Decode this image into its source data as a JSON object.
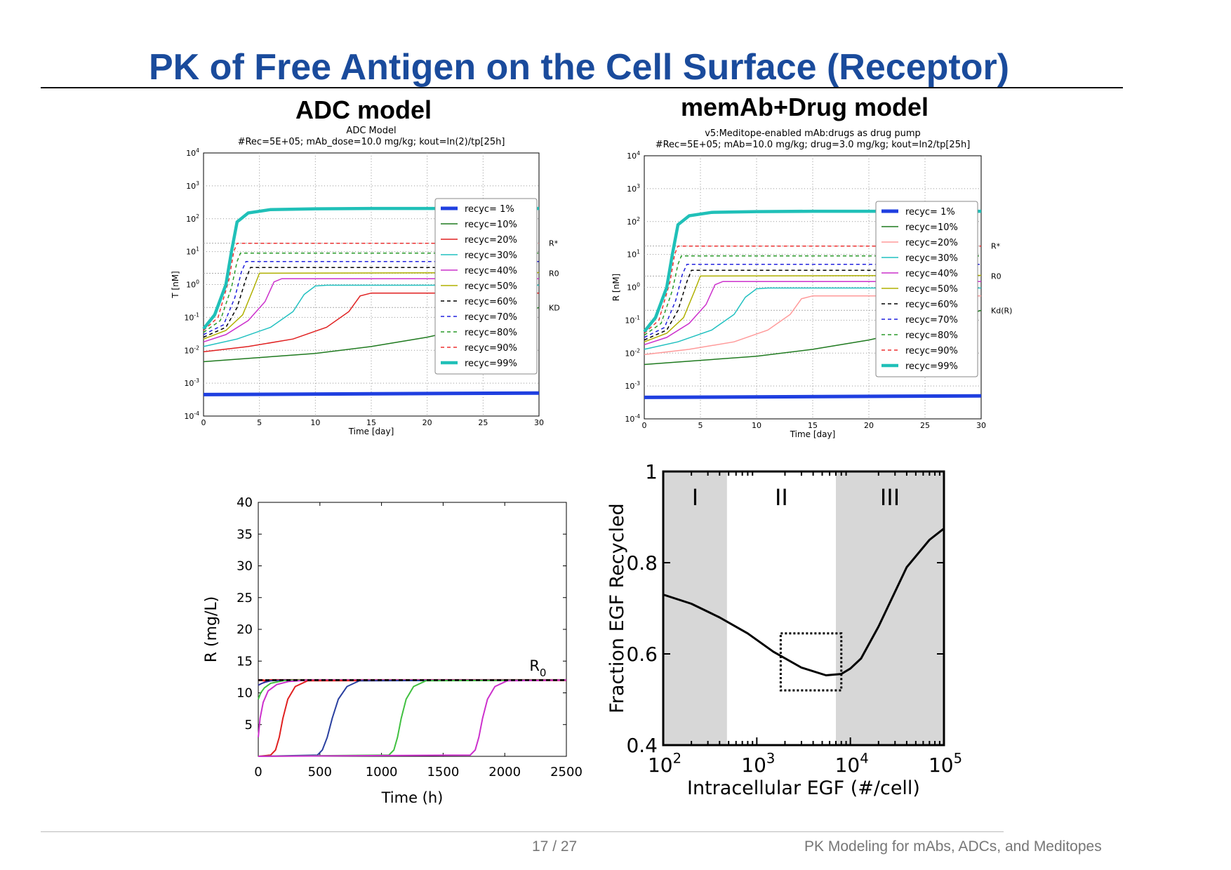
{
  "slide": {
    "title": "PK of Free Antigen on the Cell Surface (Receptor)",
    "subtitle_left": "ADC model",
    "subtitle_right": "memAb+Drug model",
    "page": "17 / 27",
    "footer": "PK Modeling for mAbs, ADCs, and Meditopes"
  },
  "colors": {
    "title": "#1a4b9c"
  },
  "chart_data": [
    {
      "id": "adc",
      "type": "line",
      "title": "ADC Model",
      "subtitle": "#Rec=5E+05; mAb_dose=10.0 mg/kg; kout=ln(2)/tp[25h]",
      "xlabel": "Time [day]",
      "ylabel": "T [nM]",
      "xlim": [
        0,
        30
      ],
      "ylim": [
        0.0001,
        10000
      ],
      "yscale": "log",
      "xticks": [
        "0",
        "5",
        "10",
        "15",
        "20",
        "25",
        "30"
      ],
      "yticks": [
        "10-4",
        "10-3",
        "10-2",
        "10-1",
        "100",
        "101",
        "102",
        "103",
        "104"
      ],
      "ref_lines": [
        {
          "label": "R*",
          "y": 18
        },
        {
          "label": "R0",
          "y": 2.2
        },
        {
          "label": "KD",
          "y": 0.2
        }
      ],
      "legend": "top-right",
      "grid": true,
      "series": [
        {
          "name": "recyc= 1%",
          "color": "#1f3fe0",
          "dash": "",
          "width": 5,
          "x": [
            0,
            30
          ],
          "y": [
            0.00045,
            0.0005
          ]
        },
        {
          "name": "recyc=10%",
          "color": "#1f7a1f",
          "dash": "",
          "width": 1.5,
          "x": [
            0,
            5,
            10,
            15,
            20,
            25,
            30
          ],
          "y": [
            0.0045,
            0.006,
            0.008,
            0.013,
            0.025,
            0.06,
            0.2
          ]
        },
        {
          "name": "recyc=20%",
          "color": "#e02020",
          "dash": "",
          "width": 1.5,
          "x": [
            0,
            4,
            8,
            11,
            13,
            14,
            15,
            30
          ],
          "y": [
            0.009,
            0.013,
            0.022,
            0.05,
            0.15,
            0.45,
            0.55,
            0.55
          ]
        },
        {
          "name": "recyc=30%",
          "color": "#20c0c0",
          "dash": "",
          "width": 1.5,
          "x": [
            0,
            3,
            6,
            8,
            9,
            10,
            11,
            30
          ],
          "y": [
            0.013,
            0.022,
            0.05,
            0.15,
            0.5,
            0.9,
            0.95,
            0.95
          ]
        },
        {
          "name": "recyc=40%",
          "color": "#cc30cc",
          "dash": "",
          "width": 1.5,
          "x": [
            0,
            2,
            4,
            5.5,
            6.3,
            7,
            30
          ],
          "y": [
            0.018,
            0.03,
            0.08,
            0.3,
            1.2,
            1.5,
            1.5
          ]
        },
        {
          "name": "recyc=50%",
          "color": "#b0b000",
          "dash": "",
          "width": 1.5,
          "x": [
            0,
            2,
            3.5,
            4.5,
            5,
            30
          ],
          "y": [
            0.022,
            0.04,
            0.12,
            0.8,
            2.2,
            2.3
          ]
        },
        {
          "name": "recyc=60%",
          "color": "#000000",
          "dash": "5,4",
          "width": 1.5,
          "x": [
            0,
            2,
            3,
            3.8,
            4.2,
            30
          ],
          "y": [
            0.025,
            0.05,
            0.2,
            1.5,
            3.3,
            3.3
          ]
        },
        {
          "name": "recyc=70%",
          "color": "#2020dd",
          "dash": "5,4",
          "width": 1.5,
          "x": [
            0,
            1.8,
            2.8,
            3.4,
            3.8,
            30
          ],
          "y": [
            0.03,
            0.06,
            0.4,
            2.5,
            5,
            5
          ]
        },
        {
          "name": "recyc=80%",
          "color": "#2a9a2a",
          "dash": "5,4",
          "width": 1.5,
          "x": [
            0,
            1.5,
            2.5,
            3,
            3.3,
            30
          ],
          "y": [
            0.035,
            0.08,
            0.8,
            5,
            9,
            9
          ]
        },
        {
          "name": "recyc=90%",
          "color": "#ee3030",
          "dash": "5,4",
          "width": 1.5,
          "x": [
            0,
            1.3,
            2.3,
            2.7,
            3,
            30
          ],
          "y": [
            0.04,
            0.1,
            1.5,
            10,
            18,
            18
          ]
        },
        {
          "name": "recyc=99%",
          "color": "#20c0b8",
          "dash": "",
          "width": 4.5,
          "x": [
            0,
            1,
            2,
            2.5,
            3,
            4,
            6,
            10,
            15,
            30
          ],
          "y": [
            0.045,
            0.12,
            1,
            10,
            80,
            150,
            190,
            200,
            205,
            205
          ]
        }
      ]
    },
    {
      "id": "memab",
      "type": "line",
      "title": "v5:Meditope-enabled mAb:drugs as drug pump",
      "subtitle": "#Rec=5E+05; mAb=10.0 mg/kg; drug=3.0 mg/kg; kout=ln2/tp[25h]",
      "xlabel": "Time [day]",
      "ylabel": "R [nM]",
      "xlim": [
        0,
        30
      ],
      "ylim": [
        0.0001,
        10000
      ],
      "yscale": "log",
      "xticks": [
        "0",
        "5",
        "10",
        "15",
        "20",
        "25",
        "30"
      ],
      "yticks": [
        "10-4",
        "10-3",
        "10-2",
        "10-1",
        "100",
        "101",
        "102",
        "103",
        "104"
      ],
      "ref_lines": [
        {
          "label": "R*",
          "y": 18
        },
        {
          "label": "R0",
          "y": 2.2
        },
        {
          "label": "Kd(R)",
          "y": 0.2
        }
      ],
      "legend": "top-right",
      "grid": true,
      "series": [
        {
          "name": "recyc= 1%",
          "color": "#1f3fe0",
          "dash": "",
          "width": 5,
          "x": [
            0,
            30
          ],
          "y": [
            0.00045,
            0.0005
          ]
        },
        {
          "name": "recyc=10%",
          "color": "#1f7a1f",
          "dash": "",
          "width": 1.5,
          "x": [
            0,
            5,
            10,
            15,
            20,
            25,
            30
          ],
          "y": [
            0.0045,
            0.006,
            0.008,
            0.013,
            0.025,
            0.06,
            0.2
          ]
        },
        {
          "name": "recyc=20%",
          "color": "#ff9a9a",
          "dash": "",
          "width": 1.5,
          "x": [
            0,
            4,
            8,
            11,
            13,
            14,
            15,
            30
          ],
          "y": [
            0.009,
            0.013,
            0.022,
            0.05,
            0.15,
            0.45,
            0.55,
            0.55
          ]
        },
        {
          "name": "recyc=30%",
          "color": "#20c0c0",
          "dash": "",
          "width": 1.5,
          "x": [
            0,
            3,
            6,
            8,
            9,
            10,
            11,
            30
          ],
          "y": [
            0.013,
            0.022,
            0.05,
            0.15,
            0.5,
            0.9,
            0.95,
            0.95
          ]
        },
        {
          "name": "recyc=40%",
          "color": "#cc30cc",
          "dash": "",
          "width": 1.5,
          "x": [
            0,
            2,
            4,
            5.5,
            6.3,
            7,
            30
          ],
          "y": [
            0.018,
            0.03,
            0.08,
            0.3,
            1.2,
            1.5,
            1.5
          ]
        },
        {
          "name": "recyc=50%",
          "color": "#b0b000",
          "dash": "",
          "width": 1.5,
          "x": [
            0,
            2,
            3.5,
            4.5,
            5,
            30
          ],
          "y": [
            0.022,
            0.04,
            0.12,
            0.8,
            2.2,
            2.3
          ]
        },
        {
          "name": "recyc=60%",
          "color": "#000000",
          "dash": "5,4",
          "width": 1.5,
          "x": [
            0,
            2,
            3,
            3.8,
            4.2,
            30
          ],
          "y": [
            0.025,
            0.05,
            0.2,
            1.5,
            3.3,
            3.3
          ]
        },
        {
          "name": "recyc=70%",
          "color": "#2020dd",
          "dash": "5,4",
          "width": 1.5,
          "x": [
            0,
            1.8,
            2.8,
            3.4,
            3.8,
            30
          ],
          "y": [
            0.03,
            0.06,
            0.4,
            2.5,
            5,
            5
          ]
        },
        {
          "name": "recyc=80%",
          "color": "#2a9a2a",
          "dash": "5,4",
          "width": 1.5,
          "x": [
            0,
            1.5,
            2.5,
            3,
            3.3,
            30
          ],
          "y": [
            0.035,
            0.08,
            0.8,
            5,
            9,
            9
          ]
        },
        {
          "name": "recyc=90%",
          "color": "#ee3030",
          "dash": "5,4",
          "width": 1.5,
          "x": [
            0,
            1.3,
            2.3,
            2.7,
            3,
            30
          ],
          "y": [
            0.04,
            0.1,
            1.5,
            10,
            18,
            18
          ]
        },
        {
          "name": "recyc=99%",
          "color": "#20c0b8",
          "dash": "",
          "width": 4.5,
          "x": [
            0,
            1,
            2,
            2.5,
            3,
            4,
            6,
            10,
            15,
            30
          ],
          "y": [
            0.045,
            0.12,
            1,
            10,
            80,
            150,
            190,
            200,
            205,
            205
          ]
        }
      ]
    },
    {
      "id": "receptor",
      "type": "line",
      "title": "",
      "xlabel": "Time (h)",
      "ylabel": "R  (mg/L)",
      "xlim": [
        0,
        2500
      ],
      "ylim": [
        0,
        40
      ],
      "xticks": [
        "0",
        "500",
        "1000",
        "1500",
        "2000",
        "2500"
      ],
      "yticks": [
        "5",
        "10",
        "15",
        "20",
        "25",
        "30",
        "35",
        "40"
      ],
      "annotation": {
        "text": "R",
        "sub": "0",
        "x": 2200,
        "y": 13.5
      },
      "ref_line": {
        "y": 12,
        "color": "#000000"
      },
      "series": [
        {
          "color": "#e02020",
          "x": [
            0,
            30,
            60,
            100,
            200,
            300,
            2500
          ],
          "y": [
            12,
            12,
            11.9,
            12,
            12,
            12,
            12
          ],
          "width": 3
        },
        {
          "color": "#3030a0",
          "x": [
            0,
            30,
            60,
            100,
            200,
            300,
            2500
          ],
          "y": [
            11.2,
            11.5,
            11.7,
            11.9,
            12,
            12,
            12
          ],
          "width": 2
        },
        {
          "color": "#40c040",
          "x": [
            0,
            20,
            50,
            100,
            200,
            300,
            2500
          ],
          "y": [
            9,
            10,
            10.8,
            11.5,
            11.9,
            12,
            12
          ],
          "width": 2
        },
        {
          "color": "#cc30cc",
          "x": [
            0,
            15,
            40,
            80,
            150,
            250,
            400,
            2500
          ],
          "y": [
            3,
            6,
            8.5,
            10.3,
            11.3,
            11.8,
            12,
            12
          ],
          "width": 2
        },
        {
          "color": "#e02020",
          "x": [
            0,
            100,
            140,
            170,
            200,
            240,
            300,
            400,
            2500
          ],
          "y": [
            0,
            0.2,
            1,
            3,
            6,
            9,
            11,
            11.9,
            12
          ],
          "width": 2
        },
        {
          "color": "#2a40a0",
          "x": [
            0,
            480,
            520,
            560,
            600,
            650,
            720,
            820,
            2500
          ],
          "y": [
            0,
            0.2,
            1,
            3,
            6,
            9,
            11,
            11.9,
            12
          ],
          "width": 2
        },
        {
          "color": "#40c040",
          "x": [
            0,
            1060,
            1100,
            1130,
            1160,
            1200,
            1260,
            1360,
            2500
          ],
          "y": [
            0,
            0.2,
            1,
            3,
            6,
            9,
            11,
            11.9,
            12
          ],
          "width": 2
        },
        {
          "color": "#cc30cc",
          "x": [
            0,
            1720,
            1760,
            1790,
            1820,
            1860,
            1920,
            2020,
            2500
          ],
          "y": [
            0,
            0.2,
            1,
            3,
            6,
            9,
            11,
            11.9,
            12
          ],
          "width": 2
        }
      ]
    },
    {
      "id": "egf",
      "type": "line",
      "title": "",
      "xlabel": "Intracellular EGF (#/cell)",
      "ylabel": "Fraction EGF Recycled",
      "xlim": [
        100,
        100000
      ],
      "xscale": "log",
      "ylim": [
        0.4,
        1
      ],
      "xticks": [
        "10^2",
        "10^3",
        "10^4",
        "10^5"
      ],
      "yticks": [
        "0.4",
        "0.6",
        "0.8",
        "1"
      ],
      "regions": [
        {
          "label": "I",
          "from": 100,
          "to": 480,
          "shaded": true
        },
        {
          "label": "II",
          "from": 480,
          "to": 7000,
          "shaded": false
        },
        {
          "label": "III",
          "from": 7000,
          "to": 100000,
          "shaded": true
        }
      ],
      "box": {
        "x": [
          1800,
          8000
        ],
        "y": [
          0.52,
          0.645
        ]
      },
      "series": [
        {
          "color": "#000000",
          "x": [
            100,
            200,
            400,
            800,
            1500,
            3000,
            5500,
            8000,
            10000,
            13000,
            20000,
            40000,
            70000,
            100000
          ],
          "y": [
            0.73,
            0.71,
            0.68,
            0.645,
            0.605,
            0.57,
            0.553,
            0.556,
            0.568,
            0.59,
            0.66,
            0.79,
            0.85,
            0.875
          ]
        }
      ]
    }
  ]
}
